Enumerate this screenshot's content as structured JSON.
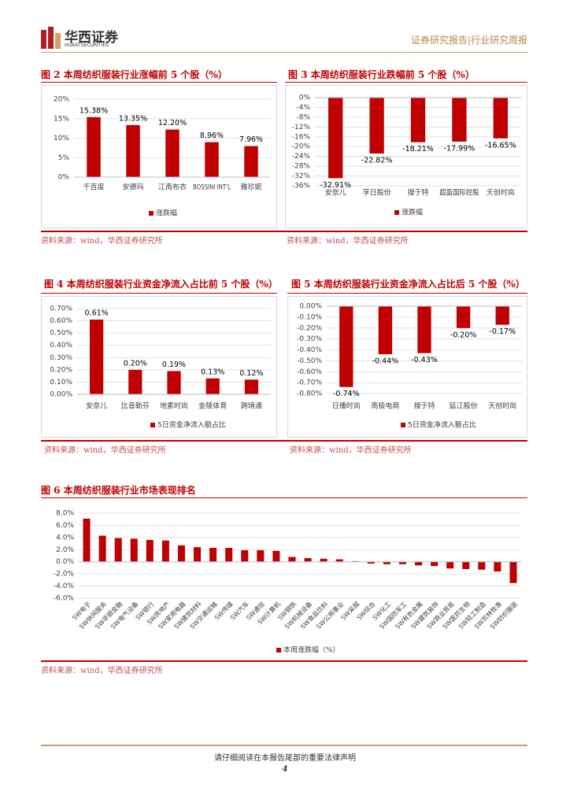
{
  "header": {
    "logo_cn": "华西证券",
    "logo_en": "HUAXI SECURITIES",
    "report_type": "证券研究报告|行业研究周报"
  },
  "chart_data": [
    {
      "type": "bar",
      "title": "图 2 本周纺织服装行业涨幅前 5 个股（%）",
      "categories": [
        "千百度",
        "安德玛",
        "江南布衣",
        "BOSSINI INT'L",
        "雅珍妮"
      ],
      "series": [
        {
          "name": "涨跌幅",
          "color": "#c00000",
          "values": [
            15.38,
            13.35,
            12.2,
            8.96,
            7.96
          ],
          "value_labels": [
            "15.38%",
            "13.35%",
            "12.20%",
            "8.96%",
            "7.96%"
          ]
        }
      ],
      "ylim": [
        0,
        20
      ],
      "yticks": [
        {
          "value": 0,
          "label": "0%"
        },
        {
          "value": 5,
          "label": "5%"
        },
        {
          "value": 10,
          "label": "10%"
        },
        {
          "value": 15,
          "label": "15%"
        },
        {
          "value": 20,
          "label": "20%"
        }
      ],
      "grid": true,
      "legend": "bottom",
      "source": "资料来源：wind，华西证券研究所"
    },
    {
      "type": "bar",
      "title": "图 3 本周纺织服装行业跌幅前 5 个股（%）",
      "categories": [
        "安奈儿",
        "孚日股份",
        "搜于特",
        "超盈国际控股",
        "天创时尚"
      ],
      "series": [
        {
          "name": "涨跌幅",
          "color": "#c00000",
          "values": [
            -32.91,
            -22.82,
            -18.21,
            -17.99,
            -16.65
          ],
          "value_labels": [
            "-32.91%",
            "-22.82%",
            "-18.21%",
            "-17.99%",
            "-16.65%"
          ]
        }
      ],
      "ylim": [
        -36,
        0
      ],
      "yticks": [
        {
          "value": 0,
          "label": "0%"
        },
        {
          "value": -4,
          "label": "-4%"
        },
        {
          "value": -8,
          "label": "-8%"
        },
        {
          "value": -12,
          "label": "-12%"
        },
        {
          "value": -16,
          "label": "-16%"
        },
        {
          "value": -20,
          "label": "-20%"
        },
        {
          "value": -24,
          "label": "-24%"
        },
        {
          "value": -28,
          "label": "-28%"
        },
        {
          "value": -32,
          "label": "-32%"
        },
        {
          "value": -36,
          "label": "-36%"
        }
      ],
      "grid": true,
      "legend": "bottom",
      "source": "资料来源：wind，华西证券研究所"
    },
    {
      "type": "bar",
      "title": "图 4 本周纺织服装行业资金净流入占比前 5 个股（%）",
      "categories": [
        "安奈儿",
        "比音勒芬",
        "地素时尚",
        "金陵体育",
        "跨境通"
      ],
      "series": [
        {
          "name": "5日资金净流入额占比",
          "color": "#c00000",
          "values": [
            0.61,
            0.2,
            0.19,
            0.13,
            0.12
          ],
          "value_labels": [
            "0.61%",
            "0.20%",
            "0.19%",
            "0.13%",
            "0.12%"
          ]
        }
      ],
      "ylim": [
        0,
        0.7
      ],
      "yticks": [
        {
          "value": 0,
          "label": "0.00%"
        },
        {
          "value": 0.1,
          "label": "0.10%"
        },
        {
          "value": 0.2,
          "label": "0.20%"
        },
        {
          "value": 0.3,
          "label": "0.30%"
        },
        {
          "value": 0.4,
          "label": "0.40%"
        },
        {
          "value": 0.5,
          "label": "0.50%"
        },
        {
          "value": 0.6,
          "label": "0.60%"
        },
        {
          "value": 0.7,
          "label": "0.70%"
        }
      ],
      "grid": true,
      "legend": "bottom",
      "source": "资料来源：wind，华西证券研究所"
    },
    {
      "type": "bar",
      "title": "图 5 本周纺织服装行业资金净流入占比后 5 个股（%）",
      "categories": [
        "日播时尚",
        "南极电商",
        "搜于特",
        "延江股份",
        "天创时尚"
      ],
      "series": [
        {
          "name": "5日资金净流入额占比",
          "color": "#c00000",
          "values": [
            -0.74,
            -0.44,
            -0.43,
            -0.2,
            -0.17
          ],
          "value_labels": [
            "-0.74%",
            "-0.44%",
            "-0.43%",
            "-0.20%",
            "-0.17%"
          ]
        }
      ],
      "ylim": [
        -0.8,
        0
      ],
      "yticks": [
        {
          "value": 0,
          "label": "0.00%"
        },
        {
          "value": -0.1,
          "label": "-0.10%"
        },
        {
          "value": -0.2,
          "label": "-0.20%"
        },
        {
          "value": -0.3,
          "label": "-0.30%"
        },
        {
          "value": -0.4,
          "label": "-0.40%"
        },
        {
          "value": -0.5,
          "label": "-0.50%"
        },
        {
          "value": -0.6,
          "label": "-0.60%"
        },
        {
          "value": -0.7,
          "label": "-0.70%"
        },
        {
          "value": -0.8,
          "label": "-0.80%"
        }
      ],
      "grid": true,
      "legend": "bottom",
      "source": "资料来源：wind，华西证券研究所"
    },
    {
      "type": "bar",
      "title": "图 6 本周纺织服装行业市场表现排名",
      "categories": [
        "SW电子",
        "SW休闲服务",
        "SW非银金融",
        "SW电气设备",
        "SW银行",
        "SW房地产",
        "SW家用电器",
        "SW建筑材料",
        "SW交通运输",
        "SW传媒",
        "SW汽车",
        "SW通信",
        "SW计算机",
        "SW钢铁",
        "SW机械设备",
        "SW食品饮料",
        "SW公用事业",
        "SW采掘",
        "SW综合",
        "SW化工",
        "SW国防军工",
        "SW有色金属",
        "SW建筑装饰",
        "SW商业贸易",
        "SW医药生物",
        "SW轻工制造",
        "SW农林牧渔",
        "SW纺织服装"
      ],
      "series": [
        {
          "name": "本周涨跌幅（%）",
          "color": "#c00000",
          "values": [
            7.1,
            4.3,
            3.9,
            3.8,
            3.6,
            3.5,
            2.7,
            2.4,
            2.3,
            2.3,
            1.9,
            1.9,
            1.8,
            0.8,
            0.6,
            0.5,
            0.4,
            0.1,
            -0.3,
            -0.4,
            -0.4,
            -0.6,
            -0.7,
            -1.1,
            -1.2,
            -1.3,
            -1.6,
            -3.5
          ]
        }
      ],
      "ylim": [
        -6,
        8
      ],
      "yticks": [
        {
          "value": 8,
          "label": "8.0%"
        },
        {
          "value": 6,
          "label": "6.0%"
        },
        {
          "value": 4,
          "label": "4.0%"
        },
        {
          "value": 2,
          "label": "2.0%"
        },
        {
          "value": 0,
          "label": "0.0%"
        },
        {
          "value": -2,
          "label": "-2.0%"
        },
        {
          "value": -4,
          "label": "-4.0%"
        },
        {
          "value": -6,
          "label": "-6.0%"
        }
      ],
      "grid": true,
      "legend": "bottom",
      "source": "资料来源：wind，华西证券研究所"
    }
  ],
  "footer": {
    "disclaimer": "请仔细阅读在本报告尾部的重要法律声明",
    "page": "4"
  }
}
